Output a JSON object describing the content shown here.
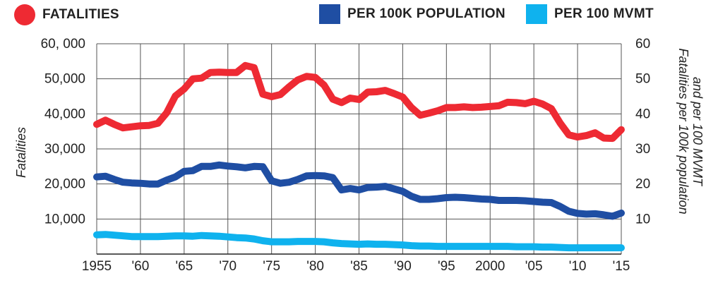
{
  "legend": {
    "fatalities": "FATALITIES",
    "per100k": "PER 100K POPULATION",
    "per100mvmt": "PER 100 MVMT"
  },
  "colors": {
    "fatalities": "#ee2a33",
    "per100k": "#1f4ea3",
    "per100mvmt": "#0fb2ee",
    "grid": "#555555",
    "axis": "#222222"
  },
  "chart_data": {
    "type": "line",
    "xlabel": "",
    "ylabel_left": "Fatalities",
    "ylabel_right_lines": [
      "Fatalities per 100k population",
      "and per 100 MVMT"
    ],
    "xlim": [
      1955,
      2015
    ],
    "ylim_left": [
      0,
      60000
    ],
    "ylim_right": [
      0,
      60
    ],
    "x_ticks": [
      1955,
      1960,
      1965,
      1970,
      1975,
      1980,
      1985,
      1990,
      1995,
      2000,
      2005,
      2010,
      2015
    ],
    "x_tick_labels": [
      "1955",
      "'60",
      "'65",
      "'70",
      "'75",
      "'80",
      "'85",
      "'90",
      "'95",
      "2000",
      "'05",
      "'10",
      "'15"
    ],
    "y_left_ticks": [
      10000,
      20000,
      30000,
      40000,
      50000,
      60000
    ],
    "y_left_tick_labels": [
      "10,000",
      "20,000",
      "30,000",
      "40,000",
      "50,000",
      "60, 000"
    ],
    "y_right_ticks": [
      10,
      20,
      30,
      40,
      50,
      60
    ],
    "y_right_tick_labels": [
      "10",
      "20",
      "30",
      "40",
      "50",
      "60"
    ],
    "grid": true,
    "x": [
      1955,
      1956,
      1957,
      1958,
      1959,
      1960,
      1961,
      1962,
      1963,
      1964,
      1965,
      1966,
      1967,
      1968,
      1969,
      1970,
      1971,
      1972,
      1973,
      1974,
      1975,
      1976,
      1977,
      1978,
      1979,
      1980,
      1981,
      1982,
      1983,
      1984,
      1985,
      1986,
      1987,
      1988,
      1989,
      1990,
      1991,
      1992,
      1993,
      1994,
      1995,
      1996,
      1997,
      1998,
      1999,
      2000,
      2001,
      2002,
      2003,
      2004,
      2005,
      2006,
      2007,
      2008,
      2009,
      2010,
      2011,
      2012,
      2013,
      2014,
      2015
    ],
    "series": [
      {
        "name": "FATALITIES",
        "axis": "left",
        "color_key": "fatalities",
        "values": [
          37000,
          38200,
          37000,
          36000,
          36300,
          36600,
          36700,
          37300,
          40300,
          45100,
          47100,
          50000,
          50200,
          51800,
          51900,
          51800,
          51800,
          53800,
          53200,
          45600,
          44900,
          45500,
          47700,
          49700,
          50700,
          50400,
          48200,
          44200,
          43200,
          44500,
          44100,
          46200,
          46300,
          46700,
          45800,
          44800,
          41800,
          39600,
          40200,
          40900,
          41800,
          41800,
          42000,
          41800,
          41900,
          42100,
          42300,
          43300,
          43200,
          42900,
          43600,
          42800,
          41500,
          37400,
          34000,
          33400,
          33800,
          34600,
          33100,
          33000,
          35500
        ]
      },
      {
        "name": "PER 100K POPULATION",
        "axis": "right",
        "color_key": "per100k",
        "values": [
          22.0,
          22.2,
          21.3,
          20.5,
          20.3,
          20.2,
          20.0,
          20.0,
          21.1,
          22.0,
          23.6,
          23.8,
          25.0,
          25.0,
          25.4,
          25.1,
          24.9,
          24.6,
          25.0,
          24.9,
          20.9,
          20.2,
          20.5,
          21.3,
          22.3,
          22.4,
          22.3,
          21.8,
          18.3,
          18.7,
          18.3,
          19.0,
          19.1,
          19.3,
          18.6,
          17.9,
          16.5,
          15.6,
          15.6,
          15.8,
          16.1,
          16.2,
          16.1,
          15.9,
          15.7,
          15.6,
          15.3,
          15.3,
          15.3,
          15.2,
          15.0,
          14.8,
          14.7,
          13.6,
          12.2,
          11.6,
          11.4,
          11.5,
          11.2,
          10.8,
          11.7
        ]
      },
      {
        "name": "PER 100 MVMT",
        "axis": "right",
        "color_key": "per100mvmt",
        "values": [
          5.5,
          5.6,
          5.4,
          5.2,
          5.0,
          5.0,
          5.0,
          5.0,
          5.1,
          5.2,
          5.2,
          5.1,
          5.3,
          5.2,
          5.1,
          4.9,
          4.7,
          4.6,
          4.3,
          3.8,
          3.5,
          3.5,
          3.5,
          3.6,
          3.6,
          3.6,
          3.5,
          3.2,
          3.0,
          2.9,
          2.8,
          2.9,
          2.8,
          2.8,
          2.7,
          2.6,
          2.4,
          2.3,
          2.3,
          2.2,
          2.2,
          2.2,
          2.2,
          2.2,
          2.2,
          2.2,
          2.2,
          2.2,
          2.1,
          2.1,
          2.1,
          2.0,
          2.0,
          1.9,
          1.8,
          1.8,
          1.8,
          1.8,
          1.8,
          1.8,
          1.8
        ]
      }
    ]
  }
}
